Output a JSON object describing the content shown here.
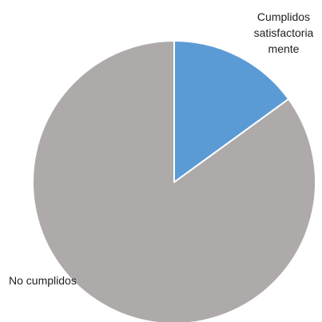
{
  "chart_data": {
    "type": "pie",
    "title": "",
    "categories": [
      "Cumplidos satisfactoriamente",
      "No cumplidos"
    ],
    "values": [
      15,
      85
    ],
    "colors": [
      "#5b9bd5",
      "#aeaaaa"
    ],
    "legend": "none",
    "labels": [
      {
        "lines": [
          "Cumplidos",
          "satisfactoria",
          "mente"
        ]
      },
      {
        "lines": [
          "No cumplidos"
        ]
      }
    ]
  }
}
